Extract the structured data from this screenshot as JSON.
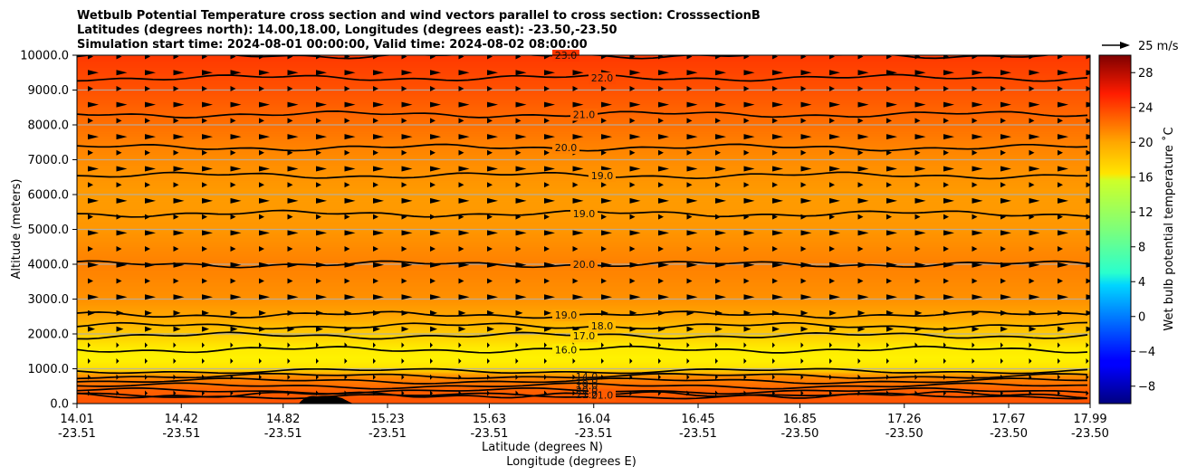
{
  "chart_data": {
    "type": "heatmap",
    "title_lines": [
      "Wetbulb Potential Temperature cross section and wind vectors parallel to cross section: CrosssectionB",
      "Latitudes (degrees north): 14.00,18.00, Longitudes (degrees east): -23.50,-23.50",
      "Simulation start time: 2024-08-01 00:00:00, Valid time: 2024-08-02 08:00:00"
    ],
    "xlabel_lat": "Latitude (degrees N)",
    "xlabel_lon": "Longitude (degrees E)",
    "ylabel": "Altitude (meters)",
    "x_ticks": [
      {
        "lat": "14.01",
        "lon": "-23.51"
      },
      {
        "lat": "14.42",
        "lon": "-23.51"
      },
      {
        "lat": "14.82",
        "lon": "-23.51"
      },
      {
        "lat": "15.23",
        "lon": "-23.51"
      },
      {
        "lat": "15.63",
        "lon": "-23.51"
      },
      {
        "lat": "16.04",
        "lon": "-23.51"
      },
      {
        "lat": "16.45",
        "lon": "-23.51"
      },
      {
        "lat": "16.85",
        "lon": "-23.50"
      },
      {
        "lat": "17.26",
        "lon": "-23.50"
      },
      {
        "lat": "17.67",
        "lon": "-23.50"
      },
      {
        "lat": "17.99",
        "lon": "-23.50"
      }
    ],
    "y_ticks": [
      "0.0",
      "1000.0",
      "2000.0",
      "3000.0",
      "4000.0",
      "5000.0",
      "6000.0",
      "7000.0",
      "8000.0",
      "9000.0",
      "10000.0"
    ],
    "ylim": [
      0,
      10000
    ],
    "grid": "horizontal",
    "colorbar": {
      "label": "Wet bulb potential temperature ˚C",
      "range": [
        -10,
        30
      ],
      "ticks": [
        "−8",
        "−4",
        "0",
        "4",
        "8",
        "12",
        "16",
        "20",
        "24",
        "28"
      ],
      "colormap": "jet"
    },
    "wind_key": {
      "label": "25 m/s"
    },
    "field_profile": {
      "altitude_m": [
        0,
        400,
        800,
        1000,
        1300,
        1600,
        2000,
        2500,
        3000,
        4000,
        5000,
        6000,
        7000,
        8000,
        9000,
        10000
      ],
      "temp_c": [
        21.8,
        21.2,
        19.5,
        16.2,
        15.5,
        15.8,
        17.0,
        18.5,
        19.3,
        20.0,
        19.1,
        18.9,
        19.5,
        20.6,
        21.8,
        22.8
      ]
    },
    "contours": [
      {
        "value": 16.0,
        "label": "16.0",
        "altitude_m": 1550
      },
      {
        "value": 17.0,
        "label": "17.0",
        "altitude_m": 1950
      },
      {
        "value": 18.0,
        "label": "18.0",
        "altitude_m": 2230
      },
      {
        "value": 19.0,
        "label": "19.0",
        "altitude_m": 2550
      },
      {
        "value": 19.0,
        "label": "19.0",
        "altitude_m": 5450
      },
      {
        "value": 19.0,
        "label": "19.0",
        "altitude_m": 6550
      },
      {
        "value": 20.0,
        "label": "20.0",
        "altitude_m": 7350
      },
      {
        "value": 21.0,
        "label": "21.0",
        "altitude_m": 8300
      },
      {
        "value": 22.0,
        "label": "22.0",
        "altitude_m": 9350
      },
      {
        "value": 23.0,
        "label": "23.0",
        "altitude_m": 10000
      },
      {
        "value": 20.0,
        "label": "20.0",
        "altitude_m": 4000
      },
      {
        "value": 21.0,
        "label": "21.0",
        "altitude_m": 250
      }
    ],
    "low_contour_labels": [
      "14.0",
      "18.0",
      "19.0",
      "20.0",
      "21.0"
    ]
  }
}
